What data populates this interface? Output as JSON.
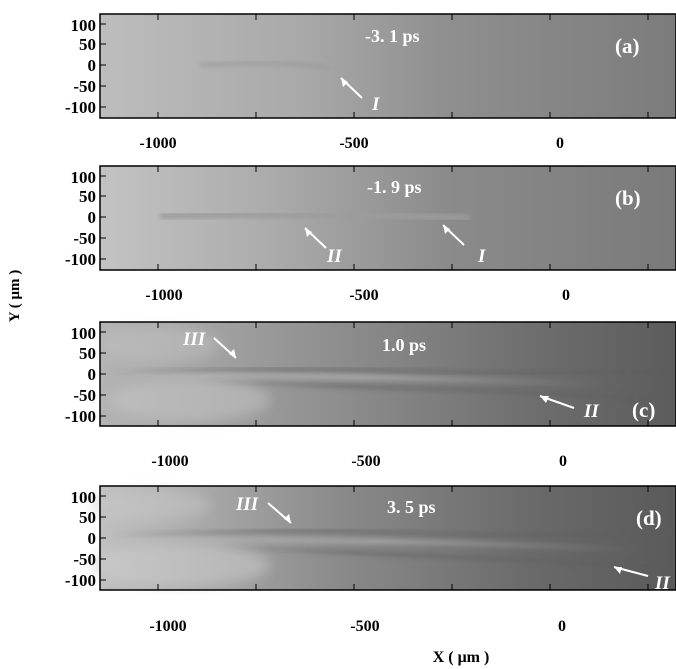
{
  "figure": {
    "ylabel": "Y ( μm )",
    "xlabel": "X ( μm )"
  },
  "chart_data": [
    {
      "type": "heatmap",
      "panel_label": "(a)",
      "time_label": "-3. 1 ps",
      "x_ticks": [
        "-1000",
        "-500",
        "0"
      ],
      "y_ticks": [
        "100",
        "50",
        "0",
        "-50",
        "-100"
      ],
      "xlim": [
        -1130,
        290
      ],
      "ylim": [
        -115,
        115
      ],
      "annotations": [
        {
          "text": "I",
          "x": -530,
          "y": -55
        }
      ]
    },
    {
      "type": "heatmap",
      "panel_label": "(b)",
      "time_label": "-1. 9 ps",
      "x_ticks": [
        "-1000",
        "-500",
        "0"
      ],
      "y_ticks": [
        "100",
        "50",
        "0",
        "-50",
        "-100"
      ],
      "xlim": [
        -1130,
        290
      ],
      "ylim": [
        -115,
        115
      ],
      "annotations": [
        {
          "text": "II",
          "x": -590,
          "y": -70
        },
        {
          "text": "I",
          "x": -210,
          "y": -70
        }
      ]
    },
    {
      "type": "heatmap",
      "panel_label": "(c)",
      "time_label": "1.0 ps",
      "x_ticks": [
        "-1000",
        "-500",
        "0"
      ],
      "y_ticks": [
        "100",
        "50",
        "0",
        "-50",
        "-100"
      ],
      "xlim": [
        -1130,
        290
      ],
      "ylim": [
        -115,
        115
      ],
      "annotations": [
        {
          "text": "III",
          "x": -890,
          "y": 70
        },
        {
          "text": "II",
          "x": 150,
          "y": -70
        }
      ]
    },
    {
      "type": "heatmap",
      "panel_label": "(d)",
      "time_label": "3. 5 ps",
      "x_ticks": [
        "-1000",
        "-500",
        "0"
      ],
      "y_ticks": [
        "100",
        "50",
        "0",
        "-50",
        "-100"
      ],
      "xlim": [
        -1130,
        290
      ],
      "ylim": [
        -115,
        115
      ],
      "annotations": [
        {
          "text": "III",
          "x": -750,
          "y": 70
        },
        {
          "text": "II",
          "x": 290,
          "y": -80
        }
      ]
    }
  ]
}
